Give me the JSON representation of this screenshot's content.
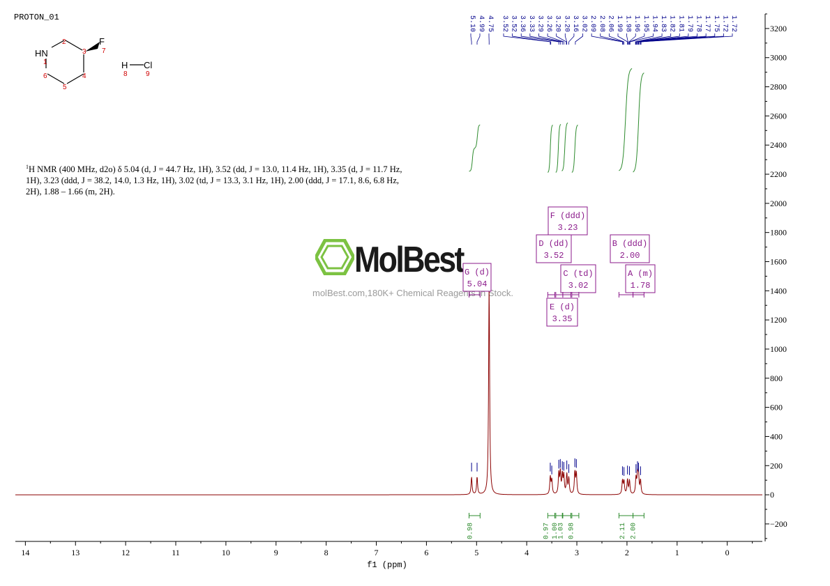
{
  "title": "PROTON_01",
  "structure": {
    "atoms": {
      "nh": "HN",
      "f": "F",
      "h": "H",
      "cl": "Cl"
    },
    "numbers": [
      "1",
      "2",
      "3",
      "4",
      "5",
      "6",
      "7",
      "8",
      "9"
    ]
  },
  "nmr_text": {
    "sup": "1",
    "body": "H NMR (400 MHz, d2o) δ 5.04 (d, J = 44.7 Hz, 1H), 3.52 (dd, J = 13.0, 11.4 Hz, 1H), 3.35 (d, J = 11.7 Hz, 1H), 3.23 (ddd, J = 38.2, 14.0, 1.3 Hz, 1H), 3.02 (td, J = 13.3, 3.1 Hz, 1H), 2.00 (ddd, J = 17.1, 8.6, 6.8 Hz, 2H), 1.88 – 1.66 (m, 2H)."
  },
  "watermark": {
    "logo": "MolBest",
    "text": "molBest.com,180K+ Chemical Reagents In Stock."
  },
  "colors": {
    "spectrum": "#8b0000",
    "integral": "#2e8b2e",
    "peak_label": "#00008b",
    "multiplet": "#8b1a8b",
    "watermark_ring": "#7cc242"
  },
  "chart_data": {
    "type": "line",
    "xlabel": "f1 (ppm)",
    "xlim": [
      14.2,
      -0.7
    ],
    "ylim": [
      -320,
      3300
    ],
    "x_ticks": [
      14,
      13,
      12,
      11,
      10,
      9,
      8,
      7,
      6,
      5,
      4,
      3,
      2,
      1,
      0
    ],
    "y_ticks": [
      -200,
      0,
      200,
      400,
      600,
      800,
      1000,
      1200,
      1400,
      1600,
      1800,
      2000,
      2200,
      2400,
      2600,
      2800,
      3000,
      3200
    ],
    "peak_labels": [
      "5.10",
      "4.99",
      "4.75",
      "3.52",
      "3.52",
      "3.36",
      "3.33",
      "3.29",
      "3.26",
      "3.20",
      "3.20",
      "3.16",
      "3.02",
      "2.09",
      "2.08",
      "2.06",
      "1.99",
      "1.98",
      "1.96",
      "1.95",
      "1.94",
      "1.83",
      "1.82",
      "1.81",
      "1.79",
      "1.78",
      "1.77",
      "1.75",
      "1.72",
      "1.72"
    ],
    "peaks": [
      {
        "ppm": 5.1,
        "height": 120
      },
      {
        "ppm": 4.99,
        "height": 120
      },
      {
        "ppm": 4.75,
        "height": 1450
      },
      {
        "ppm": 3.53,
        "height": 120
      },
      {
        "ppm": 3.5,
        "height": 100
      },
      {
        "ppm": 3.36,
        "height": 140
      },
      {
        "ppm": 3.33,
        "height": 145
      },
      {
        "ppm": 3.29,
        "height": 130
      },
      {
        "ppm": 3.26,
        "height": 125
      },
      {
        "ppm": 3.2,
        "height": 135
      },
      {
        "ppm": 3.16,
        "height": 110
      },
      {
        "ppm": 3.04,
        "height": 150
      },
      {
        "ppm": 3.01,
        "height": 145
      },
      {
        "ppm": 2.09,
        "height": 95
      },
      {
        "ppm": 2.06,
        "height": 90
      },
      {
        "ppm": 1.99,
        "height": 100
      },
      {
        "ppm": 1.95,
        "height": 95
      },
      {
        "ppm": 1.82,
        "height": 110
      },
      {
        "ppm": 1.79,
        "height": 130
      },
      {
        "ppm": 1.77,
        "height": 120
      },
      {
        "ppm": 1.73,
        "height": 95
      }
    ],
    "multiplets": [
      {
        "label": "F (ddd)",
        "shift": "3.23",
        "ppm": 3.23
      },
      {
        "label": "D (dd)",
        "shift": "3.52",
        "ppm": 3.52
      },
      {
        "label": "B (ddd)",
        "shift": "2.00",
        "ppm": 2.0
      },
      {
        "label": "G (d)",
        "shift": "5.04",
        "ppm": 5.04
      },
      {
        "label": "C (td)",
        "shift": "3.02",
        "ppm": 3.02
      },
      {
        "label": "A (m)",
        "shift": "1.78",
        "ppm": 1.78
      },
      {
        "label": "E (d)",
        "shift": "3.35",
        "ppm": 3.35
      }
    ],
    "integrals": [
      {
        "value": "0.98",
        "ppm": 5.04,
        "from": 5.15,
        "to": 4.93
      },
      {
        "value": "0.97",
        "ppm": 3.52,
        "from": 3.58,
        "to": 3.44
      },
      {
        "value": "1.00",
        "ppm": 3.35,
        "from": 3.42,
        "to": 3.29
      },
      {
        "value": "1.03",
        "ppm": 3.23,
        "from": 3.28,
        "to": 3.12
      },
      {
        "value": "0.98",
        "ppm": 3.02,
        "from": 3.1,
        "to": 2.96
      },
      {
        "value": "2.11",
        "ppm": 2.0,
        "from": 2.16,
        "to": 1.88
      },
      {
        "value": "2.00",
        "ppm": 1.78,
        "from": 1.88,
        "to": 1.66
      }
    ]
  }
}
